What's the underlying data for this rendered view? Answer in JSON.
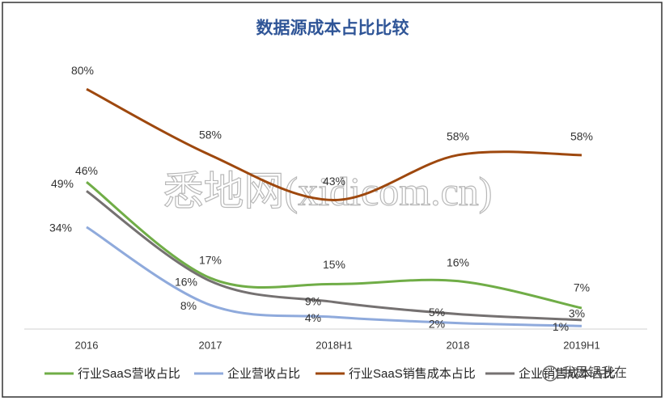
{
  "chart_data": {
    "type": "line",
    "title": "数据源成本占比比较",
    "categories": [
      "2016",
      "2017",
      "2018H1",
      "2018",
      "2019H1"
    ],
    "series": [
      {
        "name": "行业SaaS营收占比",
        "color": "#70ad47",
        "values": [
          49,
          17,
          15,
          16,
          7
        ],
        "value_labels": [
          "49%",
          "17%",
          "15%",
          "16%",
          "7%"
        ]
      },
      {
        "name": "企业营收占比",
        "color": "#8faadc",
        "values": [
          34,
          8,
          4,
          2,
          1
        ],
        "value_labels": [
          "34%",
          "8%",
          "4%",
          "2%",
          "1%"
        ]
      },
      {
        "name": "行业SaaS销售成本占比",
        "color": "#9e480e",
        "values": [
          80,
          58,
          43,
          58,
          58
        ],
        "value_labels": [
          "80%",
          "58%",
          "43%",
          "58%",
          "58%"
        ]
      },
      {
        "name": "企业销售成本占比",
        "color": "#757171",
        "values": [
          46,
          16,
          9,
          5,
          3
        ],
        "value_labels": [
          "46%",
          "16%",
          "9%",
          "5%",
          "3%"
        ]
      }
    ],
    "smooth": true,
    "legend": "bottom"
  },
  "watermarks": [
    "悉地网(xidicom.cn)",
    "我思锅我在"
  ]
}
